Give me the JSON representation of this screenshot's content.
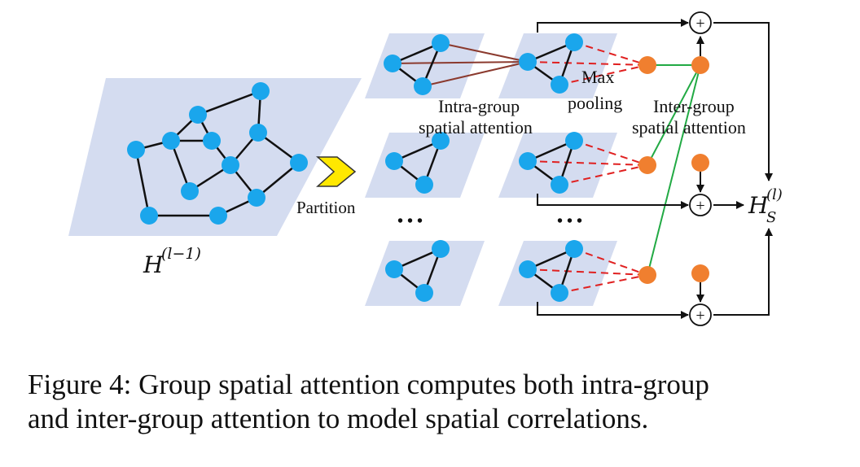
{
  "labels": {
    "input_symbol": "H",
    "input_superscript": "(l−1)",
    "partition": "Partition",
    "intra_line1": "Intra-group",
    "intra_line2": "spatial attention",
    "max_line1": "Max",
    "max_line2": "pooling",
    "inter_line1": "Inter-group",
    "inter_line2": "spatial attention",
    "output_symbol": "H",
    "output_subscript": "S",
    "output_superscript": "(l)",
    "ellipsis": "• • •",
    "plus": "+"
  },
  "caption": {
    "line1": "Figure 4: Group spatial attention computes both intra-group",
    "line2": "and inter-group attention to model spatial correlations."
  },
  "colors": {
    "plane": "#d4dcf0",
    "node_blue": "#1aa6ec",
    "node_orange": "#f07f2f",
    "intra_edge": "#8b3a2e",
    "dash_red": "#e02020",
    "inter_green": "#22aa44",
    "arrow_yellow": "#ffe800"
  }
}
